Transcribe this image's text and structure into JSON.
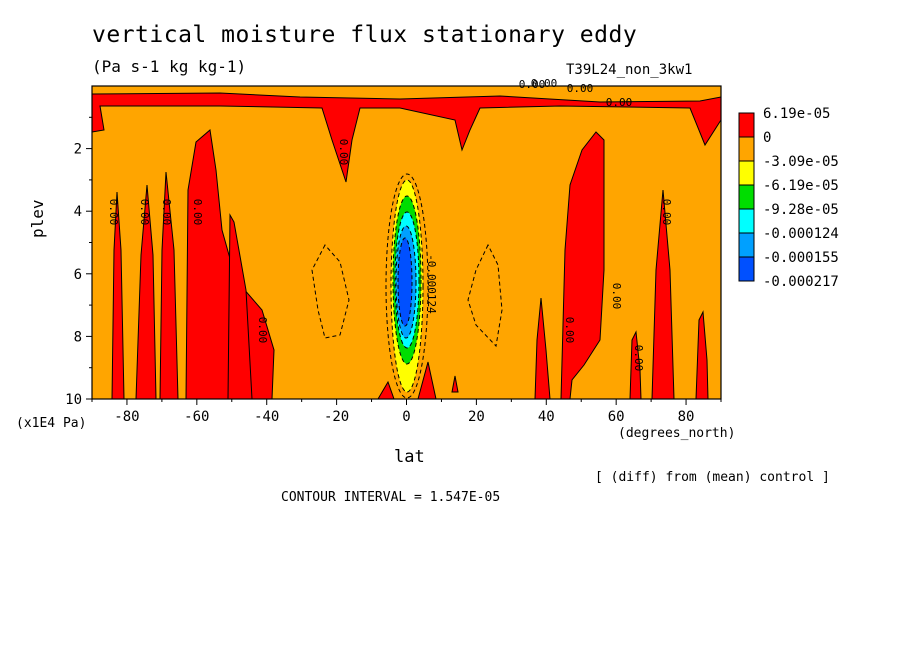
{
  "header": {
    "title": "vertical moisture flux stationary eddy",
    "units": "(Pa s-1 kg kg-1)",
    "run_id": "T39L24_non_3kw1"
  },
  "footer": {
    "diff_note": "[ (diff) from (mean) control ]",
    "contour_interval": "CONTOUR INTERVAL = 1.547E-05"
  },
  "colors": {
    "red": "#ff0000",
    "orange": "#ffa500",
    "yellow": "#ffff00",
    "green": "#00dd00",
    "cyan": "#00ffff",
    "lightblue": "#00a0ff",
    "blue": "#0050ff"
  },
  "chart_data": {
    "type": "contour",
    "xlabel": "lat",
    "x_unit": "(degrees_north)",
    "ylabel": "plev",
    "y_unit": "(x1E4 Pa)",
    "xlim": [
      -90,
      90
    ],
    "ylim": [
      10,
      0
    ],
    "x_ticks": [
      "-80",
      "-60",
      "-40",
      "-20",
      "0",
      "20",
      "40",
      "60",
      "80"
    ],
    "y_ticks": [
      "2",
      "4",
      "6",
      "8",
      "10"
    ],
    "contour_interval": 1.547e-05,
    "legend": [
      {
        "label": "6.19e-05",
        "color": "#ff0000"
      },
      {
        "label": "0",
        "color": "#ffa500"
      },
      {
        "label": "-3.09e-05",
        "color": "#ffff00"
      },
      {
        "label": "-6.19e-05",
        "color": "#00dd00"
      },
      {
        "label": "-9.28e-05",
        "color": "#00ffff"
      },
      {
        "label": "-0.000124",
        "color": "#00a0ff"
      },
      {
        "label": "-0.000155",
        "color": "#0050ff"
      },
      {
        "label": "-0.000217",
        "color": ""
      }
    ],
    "contour_labels": [
      "0.00",
      "0.00",
      "0.00",
      "0.00",
      "0.00",
      "0.00",
      "0.00",
      "0.00",
      "0.00",
      "0.00",
      "0.00",
      "0.00",
      "0.00",
      "0.00",
      "-0.000124"
    ]
  }
}
